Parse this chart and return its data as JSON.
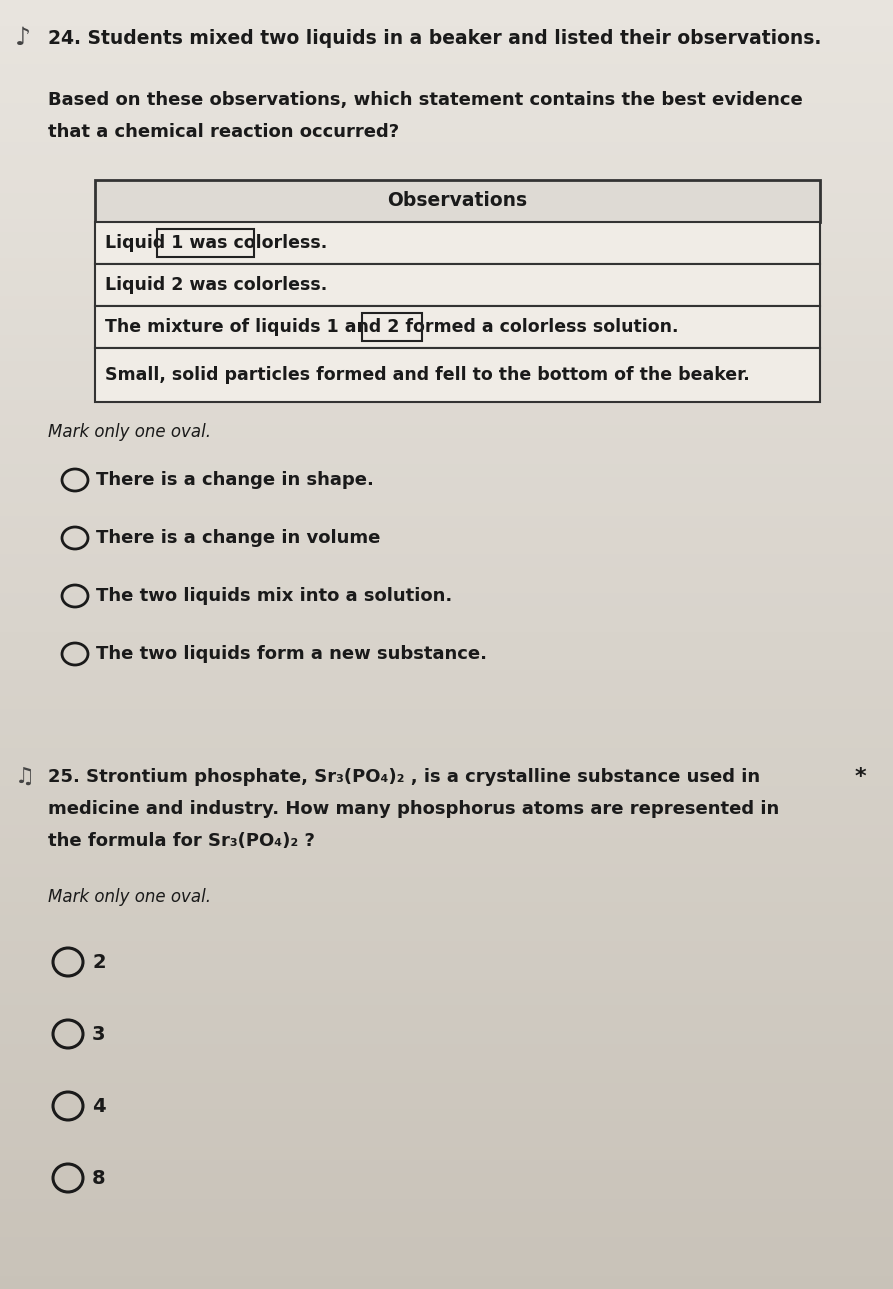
{
  "bg_color_top": "#e8e4de",
  "bg_color_bottom": "#c8c2b8",
  "q24_number": "24.",
  "q24_title": "Students mixed two liquids in a beaker and listed their observations.",
  "q24_subtext_line1": "Based on these observations, which statement contains the best evidence",
  "q24_subtext_line2": "that a chemical reaction occurred?",
  "table_header": "Observations",
  "table_rows": [
    "Liquid 1 was colorless.",
    "Liquid 2 was colorless.",
    "The mixture of liquids 1 and 2 formed a colorless solution.",
    "Small, solid particles formed and fell to the bottom of the beaker."
  ],
  "mark_only_one_oval_1": "Mark only one oval.",
  "q24_options": [
    "There is a change in shape.",
    "There is a change in volume",
    "The two liquids mix into a solution.",
    "The two liquids form a new substance."
  ],
  "q25_number": "25.",
  "q25_text_line1": "Strontium phosphate, Sr₃(PO₄)₂ , is a crystalline substance used in",
  "q25_text_line2": "medicine and industry. How many phosphorus atoms are represented in",
  "q25_text_line3": "the formula for Sr₃(PO₄)₂ ?",
  "mark_only_one_oval_2": "Mark only one oval.",
  "q25_options": [
    "2",
    "3",
    "4",
    "8"
  ],
  "font_color": "#1a1a1a",
  "table_border_color": "#333333",
  "oval_color": "#1a1a1a"
}
